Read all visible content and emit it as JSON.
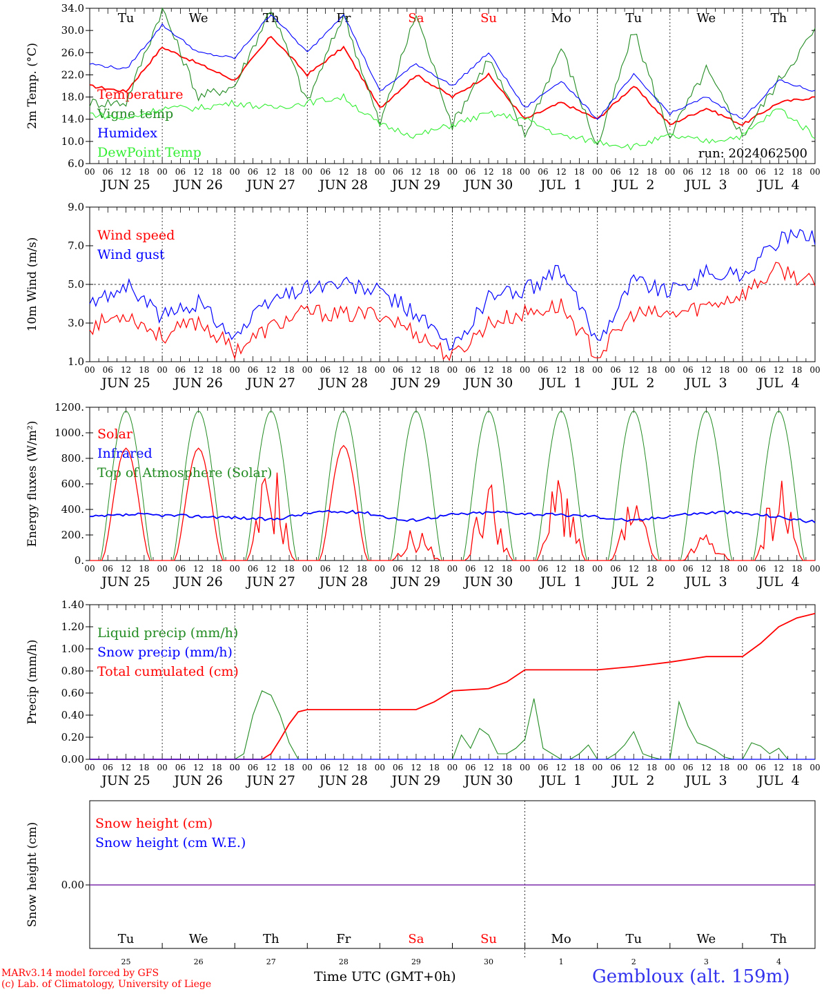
{
  "run_label": "run: 2024062500",
  "hour_ticks": [
    "00",
    "06",
    "12",
    "18"
  ],
  "day_labels": [
    "JUN 25",
    "JUN 26",
    "JUN 27",
    "JUN 28",
    "JUN 29",
    "JUN 30",
    "JUL  1",
    "JUL  2",
    "JUL  3",
    "JUL  4"
  ],
  "weekdays": [
    {
      "label": "Tu",
      "color": "#000000"
    },
    {
      "label": "We",
      "color": "#000000"
    },
    {
      "label": "Th",
      "color": "#000000"
    },
    {
      "label": "Fr",
      "color": "#000000"
    },
    {
      "label": "Sa",
      "color": "#ff0000"
    },
    {
      "label": "Su",
      "color": "#ff0000"
    },
    {
      "label": "Mo",
      "color": "#000000"
    },
    {
      "label": "Tu",
      "color": "#000000"
    },
    {
      "label": "We",
      "color": "#000000"
    },
    {
      "label": "Th",
      "color": "#000000"
    }
  ],
  "bottom_month_labels": [
    "JUN",
    "JUL"
  ],
  "bottom_day_numbers": [
    "25",
    "26",
    "27",
    "28",
    "29",
    "30",
    "1",
    "2",
    "3",
    "4"
  ],
  "footer": {
    "credit_line1": "MARv3.14 model forced by GFS",
    "credit_line2": "(c) Lab. of Climatology, University of Liege",
    "x_title": "Time UTC (GMT+0h)",
    "station": "Gembloux (alt. 159m)"
  },
  "chart_data": [
    {
      "type": "line",
      "ylabel": "2m Temp. (°C)",
      "ylim": [
        6,
        34
      ],
      "ytick_labels": [
        "6.0",
        "10.0",
        "14.0",
        "18.0",
        "22.0",
        "26.0",
        "30.0",
        "34.0"
      ],
      "ytick_values": [
        6,
        10,
        14,
        18,
        22,
        26,
        30,
        34
      ],
      "x_hours": [
        0,
        12,
        24,
        36,
        48,
        60,
        72,
        84,
        96,
        108,
        120,
        132,
        144,
        156,
        168,
        180,
        192,
        204,
        216,
        228,
        240
      ],
      "series": [
        {
          "name": "Temperature",
          "color": "#ff0000",
          "values": [
            20,
            19,
            27,
            24,
            21,
            29,
            22,
            27,
            16,
            22,
            18,
            22,
            14,
            17,
            14,
            20,
            13,
            16,
            13,
            17,
            18
          ]
        },
        {
          "name": "Vigne temp",
          "color": "#228b22",
          "values": [
            17,
            17,
            34,
            18,
            20,
            34,
            17,
            33,
            13,
            33,
            13,
            25,
            11,
            27,
            9,
            30,
            11,
            23,
            11,
            21,
            30
          ]
        },
        {
          "name": "Humidex",
          "color": "#0000ff",
          "values": [
            24,
            23,
            31,
            26,
            25,
            33,
            26,
            33,
            19,
            24,
            20,
            26,
            16,
            21,
            14,
            22,
            15,
            18,
            14,
            21,
            19
          ]
        },
        {
          "name": "DewPoint Temp",
          "color": "#33ee33",
          "values": [
            15,
            14,
            16,
            16,
            17,
            16,
            17,
            18,
            13,
            11,
            13,
            15,
            14,
            11,
            10,
            9,
            11,
            10,
            11,
            16,
            11
          ]
        }
      ]
    },
    {
      "type": "line",
      "ylabel": "10m Wind (m/s)",
      "ylim": [
        1,
        9
      ],
      "ytick_labels": [
        "1.0",
        "3.0",
        "5.0",
        "7.0",
        "9.0"
      ],
      "ytick_values": [
        1,
        3,
        5,
        7,
        9
      ],
      "x_hours": [
        0,
        12,
        24,
        36,
        48,
        60,
        72,
        84,
        96,
        108,
        120,
        132,
        144,
        156,
        168,
        180,
        192,
        204,
        216,
        228,
        240
      ],
      "series": [
        {
          "name": "Wind speed",
          "color": "#ff0000",
          "values": [
            2.8,
            3.5,
            2.3,
            3.1,
            1.6,
            2.8,
            3.6,
            3.4,
            3.5,
            2.5,
            1.2,
            3.0,
            3.5,
            3.9,
            1.3,
            3.5,
            3.4,
            3.9,
            4.5,
            5.8,
            5.0
          ]
        },
        {
          "name": "Wind gust",
          "color": "#0000ff",
          "values": [
            3.9,
            5.0,
            3.3,
            4.1,
            2.3,
            4.2,
            4.9,
            5.0,
            4.6,
            3.5,
            1.6,
            4.4,
            4.7,
            5.7,
            2.1,
            5.3,
            4.6,
            5.6,
            5.5,
            7.3,
            7.5
          ]
        }
      ]
    },
    {
      "type": "line",
      "ylabel": "Energy fluxes (W/m²)",
      "ylim": [
        0,
        1200
      ],
      "ytick_labels": [
        "0.",
        "200.",
        "400.",
        "600.",
        "800.",
        "1000.",
        "1200."
      ],
      "ytick_values": [
        0,
        200,
        400,
        600,
        800,
        1000,
        1200
      ],
      "series": [
        {
          "name": "Solar",
          "color": "#ff0000",
          "daily_peak": [
            880,
            880,
            850,
            900,
            280,
            680,
            780,
            490,
            240,
            780
          ]
        },
        {
          "name": "Infrared",
          "color": "#0000ff",
          "daily_mean": [
            340,
            360,
            350,
            340,
            320,
            380,
            380,
            310,
            360,
            380,
            360,
            350,
            310,
            360,
            380,
            350,
            300
          ]
        },
        {
          "name": "Top of Atmosphere (Solar)",
          "color": "#228b22",
          "daily_peak": [
            1170,
            1170,
            1170,
            1170,
            1170,
            1170,
            1170,
            1170,
            1170,
            1170
          ]
        }
      ]
    },
    {
      "type": "line",
      "ylabel": "Precip (mm/h)",
      "ylim": [
        0,
        1.4
      ],
      "ytick_labels": [
        "0.00",
        "0.20",
        "0.40",
        "0.60",
        "0.80",
        "1.00",
        "1.20",
        "1.40"
      ],
      "ytick_values": [
        0,
        0.2,
        0.4,
        0.6,
        0.8,
        1.0,
        1.2,
        1.4
      ],
      "series": [
        {
          "name": "Liquid precip (mm/h)",
          "color": "#228b22",
          "x_hours": [
            0,
            48,
            51,
            54,
            57,
            60,
            63,
            66,
            69,
            120,
            123,
            126,
            129,
            132,
            135,
            138,
            141,
            144,
            147,
            150,
            153,
            156,
            159,
            162,
            165,
            168,
            171,
            174,
            177,
            180,
            183,
            186,
            189,
            192,
            195,
            198,
            201,
            204,
            207,
            210,
            213,
            216,
            219,
            222,
            225,
            228,
            231,
            234,
            237,
            240
          ],
          "values": [
            0,
            0,
            0.05,
            0.4,
            0.62,
            0.58,
            0.4,
            0.15,
            0,
            0,
            0.22,
            0.1,
            0.28,
            0.22,
            0.05,
            0.05,
            0.1,
            0.18,
            0.55,
            0.1,
            0.05,
            0,
            0,
            0.05,
            0.13,
            0,
            0,
            0.05,
            0.13,
            0.25,
            0.05,
            0.02,
            0,
            0,
            0.52,
            0.3,
            0.15,
            0.12,
            0.08,
            0.02,
            0,
            0,
            0.15,
            0.12,
            0.05,
            0.1,
            0,
            0,
            0,
            0
          ]
        },
        {
          "name": "Snow precip (mm/h)",
          "color": "#0000ff",
          "values": []
        },
        {
          "name": "Total cumulated (cm)",
          "color": "#ff0000",
          "x_hours": [
            0,
            57,
            60,
            63,
            66,
            69,
            72,
            96,
            108,
            114,
            120,
            132,
            138,
            144,
            168,
            180,
            192,
            204,
            216,
            222,
            228,
            234,
            240
          ],
          "values": [
            0,
            0,
            0.05,
            0.18,
            0.32,
            0.43,
            0.45,
            0.45,
            0.45,
            0.52,
            0.62,
            0.64,
            0.7,
            0.81,
            0.81,
            0.84,
            0.88,
            0.93,
            0.93,
            1.05,
            1.2,
            1.28,
            1.32
          ]
        }
      ]
    },
    {
      "type": "line",
      "ylabel": "Snow height (cm)",
      "ytick_labels": [
        "0.00"
      ],
      "ytick_values": [
        0
      ],
      "series": [
        {
          "name": "Snow height (cm)",
          "color": "#ff0000",
          "values": [
            0,
            0
          ]
        },
        {
          "name": "Snow height (cm W.E.)",
          "color": "#0000ff",
          "values": [
            0,
            0
          ]
        }
      ]
    }
  ]
}
